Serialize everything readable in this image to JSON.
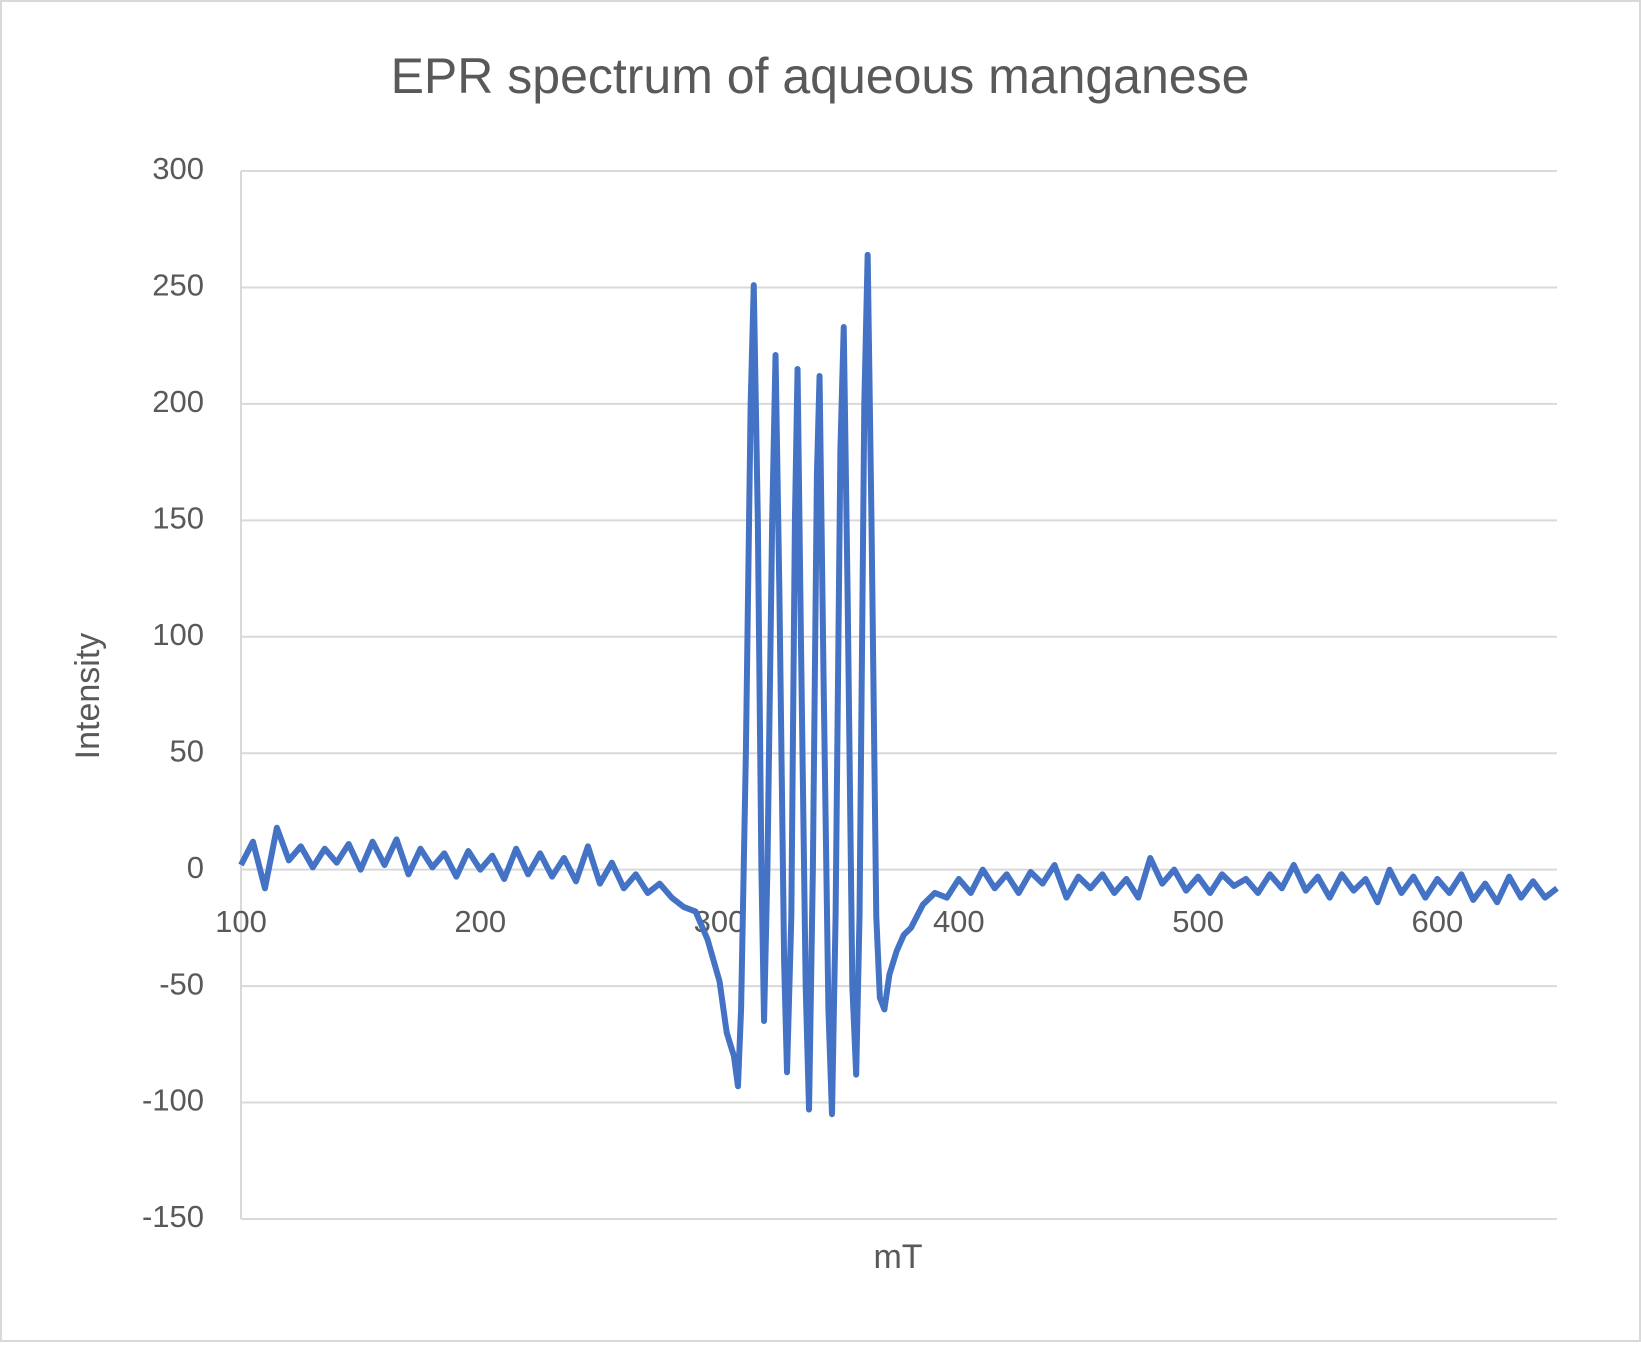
{
  "chart_data": {
    "type": "line",
    "title": "EPR spectrum of aqueous manganese",
    "x_label": "mT",
    "y_label": "Intensity",
    "color": "#4472c4",
    "grid": true,
    "xlim": [
      100,
      650
    ],
    "xticks": [
      100,
      200,
      300,
      400,
      500,
      600
    ],
    "ylim": [
      -150,
      300
    ],
    "yticks": [
      -150,
      -100,
      -50,
      0,
      50,
      100,
      150,
      200,
      250,
      300
    ],
    "x": [
      100,
      105,
      110,
      115,
      120,
      125,
      130,
      135,
      140,
      145,
      150,
      155,
      160,
      165,
      170,
      175,
      180,
      185,
      190,
      195,
      200,
      205,
      210,
      215,
      220,
      225,
      230,
      235,
      240,
      245,
      250,
      255,
      260,
      265,
      270,
      275,
      280,
      285,
      290,
      295,
      300,
      303,
      306,
      307.7,
      309,
      311,
      313,
      314.3,
      316,
      317.5,
      318.6,
      320,
      322,
      323.4,
      325,
      327,
      328.2,
      330,
      331.5,
      332.6,
      334,
      336,
      337.4,
      339,
      340.7,
      341.8,
      343.5,
      345.5,
      347,
      348.5,
      350.5,
      351.9,
      353.5,
      355.5,
      357.1,
      358.5,
      360.5,
      361.9,
      363.5,
      365.5,
      367,
      368.9,
      371,
      374,
      377,
      380,
      385,
      390,
      395,
      400,
      405,
      410,
      415,
      420,
      425,
      430,
      435,
      440,
      445,
      450,
      455,
      460,
      465,
      470,
      475,
      480,
      485,
      490,
      495,
      500,
      505,
      510,
      515,
      520,
      525,
      530,
      535,
      540,
      545,
      550,
      555,
      560,
      565,
      570,
      575,
      580,
      585,
      590,
      595,
      600,
      605,
      610,
      615,
      620,
      625,
      630,
      635,
      640,
      645,
      650
    ],
    "values": [
      2,
      12,
      -8,
      18,
      4,
      10,
      1,
      9,
      3,
      11,
      0,
      12,
      2,
      13,
      -2,
      9,
      1,
      7,
      -3,
      8,
      0,
      6,
      -4,
      9,
      -2,
      7,
      -3,
      5,
      -5,
      10,
      -6,
      3,
      -8,
      -2,
      -10,
      -6,
      -12,
      -16,
      -18,
      -30,
      -48,
      -70,
      -80,
      -93,
      -60,
      50,
      200,
      251,
      150,
      0,
      -65,
      0,
      150,
      221,
      120,
      -40,
      -87,
      -20,
      150,
      215,
      100,
      -50,
      -103,
      0,
      170,
      212,
      80,
      -60,
      -105,
      -20,
      180,
      233,
      120,
      -50,
      -88,
      -20,
      200,
      264,
      150,
      -20,
      -55,
      -60,
      -45,
      -35,
      -28,
      -25,
      -15,
      -10,
      -12,
      -4,
      -10,
      0,
      -8,
      -2,
      -10,
      -1,
      -6,
      2,
      -12,
      -3,
      -8,
      -2,
      -10,
      -4,
      -12,
      5,
      -6,
      0,
      -9,
      -3,
      -10,
      -2,
      -7,
      -4,
      -10,
      -2,
      -8,
      2,
      -9,
      -3,
      -12,
      -2,
      -9,
      -4,
      -14,
      0,
      -10,
      -3,
      -12,
      -4,
      -10,
      -2,
      -13,
      -6,
      -14,
      -3,
      -12,
      -5,
      -12,
      -8
    ]
  }
}
